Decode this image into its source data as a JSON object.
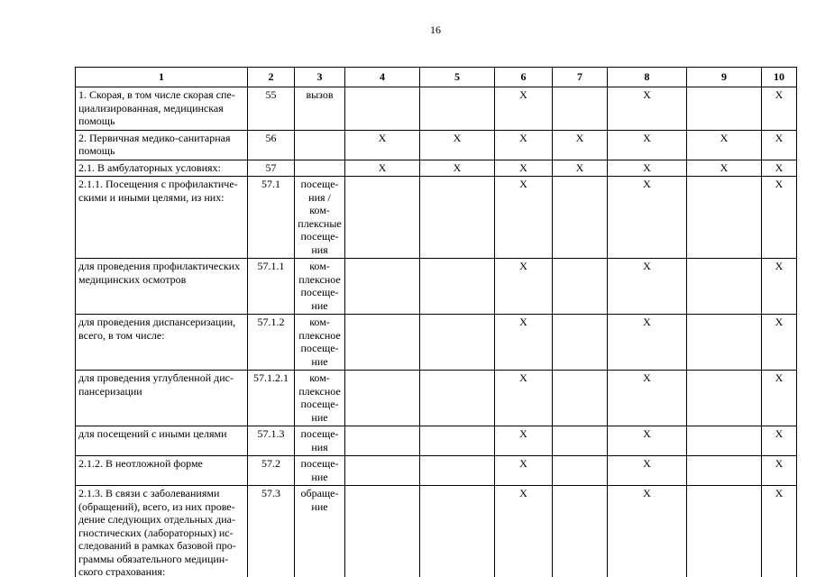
{
  "page": {
    "number": "16"
  },
  "table": {
    "header": [
      "1",
      "2",
      "3",
      "4",
      "5",
      "6",
      "7",
      "8",
      "9",
      "10"
    ],
    "rows": [
      {
        "cells": [
          "1. Скорая, в том числе скорая спе-\nциализированная, медицинская\nпомощь",
          "55",
          "вызов",
          "",
          "",
          "X",
          "",
          "X",
          "",
          "X"
        ]
      },
      {
        "cells": [
          "2. Первичная медико-санитарная\nпомощь",
          "56",
          "",
          "X",
          "X",
          "X",
          "X",
          "X",
          "X",
          "X"
        ]
      },
      {
        "cells": [
          "2.1.  В амбулаторных условиях:",
          "57",
          "",
          "X",
          "X",
          "X",
          "X",
          "X",
          "X",
          "X"
        ]
      },
      {
        "cells": [
          "2.1.1. Посещения с профилактиче-\nскими и иными целями, из них:",
          "57.1",
          "посеще-\nния /\nком-\nплексные\nпосеще-\nния",
          "",
          "",
          "X",
          "",
          "X",
          "",
          "X"
        ]
      },
      {
        "cells": [
          "для проведения профилактических\nмедицинских осмотров",
          "57.1.1",
          "ком-\nплексное\nпосеще-\nние",
          "",
          "",
          "X",
          "",
          "X",
          "",
          "X"
        ]
      },
      {
        "cells": [
          "для проведения диспансеризации,\nвсего, в том числе:",
          "57.1.2",
          "ком-\nплексное\nпосеще-\nние",
          "",
          "",
          "X",
          "",
          "X",
          "",
          "X"
        ]
      },
      {
        "cells": [
          "для проведения углубленной дис-\nпансеризации",
          "57.1.2.1",
          "ком-\nплексное\nпосеще-\nние",
          "",
          "",
          "X",
          "",
          "X",
          "",
          "X"
        ]
      },
      {
        "cells": [
          "для посещений с иными целями",
          "57.1.3",
          "посеще-\nния",
          "",
          "",
          "X",
          "",
          "X",
          "",
          "X"
        ]
      },
      {
        "cells": [
          "2.1.2. В неотложной форме",
          "57.2",
          "посеще-\nние",
          "",
          "",
          "X",
          "",
          "X",
          "",
          "X"
        ]
      },
      {
        "cells": [
          "2.1.3. В связи с заболеваниями\n(обращений), всего, из них прове-\nдение следующих отдельных диа-\nгностических (лабораторных) ис-\nследований в рамках базовой про-\nграммы обязательного медицин-\nского страхования:",
          "57.3",
          "обраще-\nние",
          "",
          "",
          "X",
          "",
          "X",
          "",
          "X"
        ]
      }
    ]
  }
}
